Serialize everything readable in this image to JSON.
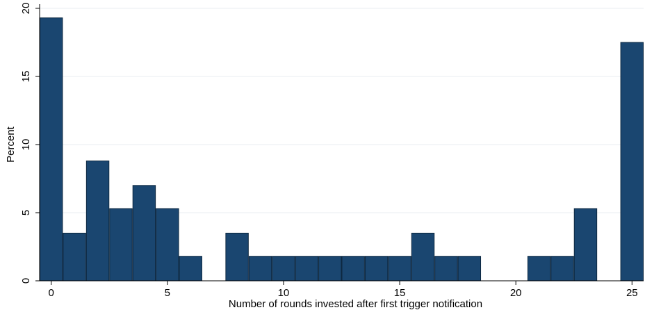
{
  "chart_data": {
    "type": "bar",
    "title": "",
    "xlabel": "Number of rounds invested after first trigger notification",
    "ylabel": "Percent",
    "xlim": [
      -0.5,
      25.5
    ],
    "ylim": [
      0,
      20
    ],
    "grid": true,
    "bar_color": "#1a4670",
    "bar_edge_color": "#0d2840",
    "grid_color": "#e8edf2",
    "x_ticks": [
      0,
      5,
      10,
      15,
      20,
      25
    ],
    "y_ticks": [
      0,
      5,
      10,
      15,
      20
    ],
    "x_tick_labels": [
      "0",
      "5",
      "10",
      "15",
      "20",
      "25"
    ],
    "y_tick_labels": [
      "0",
      "5",
      "10",
      "15",
      "20"
    ],
    "categories": [
      0,
      1,
      2,
      3,
      4,
      5,
      6,
      8,
      9,
      10,
      11,
      12,
      13,
      14,
      15,
      16,
      17,
      18,
      21,
      22,
      23,
      25
    ],
    "values": [
      19.3,
      3.5,
      8.8,
      5.3,
      7.0,
      5.3,
      1.8,
      3.5,
      1.8,
      1.8,
      1.8,
      1.8,
      1.8,
      1.8,
      1.8,
      3.5,
      1.8,
      1.8,
      1.8,
      1.8,
      5.3,
      17.5
    ]
  }
}
